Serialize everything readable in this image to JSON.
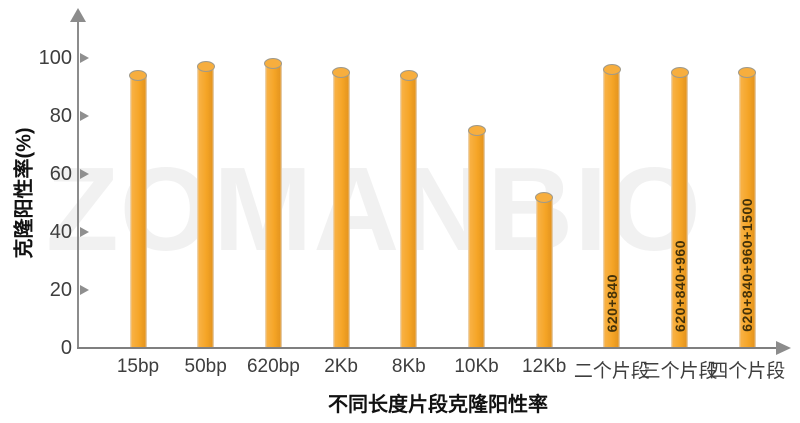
{
  "watermark": {
    "text": "ZOMANBIO"
  },
  "chart_data": {
    "type": "bar",
    "title": "",
    "xlabel": "不同长度片段克隆阳性率",
    "ylabel": "克隆阳性率(%)",
    "categories": [
      "15bp",
      "50bp",
      "620bp",
      "2Kb",
      "8Kb",
      "10Kb",
      "12Kb",
      "二个片段",
      "三个片段",
      "四个片段"
    ],
    "values": [
      94,
      97,
      98,
      95,
      94,
      75,
      52,
      96,
      95,
      95
    ],
    "bar_annotations": [
      "",
      "",
      "",
      "",
      "",
      "",
      "",
      "620+840",
      "620+840+960",
      "620+840+960+1500"
    ],
    "y_ticks": [
      0,
      20,
      40,
      60,
      80,
      100
    ],
    "ylim": [
      0,
      110
    ],
    "grid": false,
    "legend": null,
    "bar_color": "#F5A526",
    "bar_cap_color": "#F7AE3E",
    "bar_cap_stroke": "#A09A8A",
    "annotation_color": "#44320A",
    "axis_color": "#8C8C8C",
    "tick_label_color": "#3E3E3E",
    "title_color": "#111111",
    "watermark_color": "#F1F1F1"
  }
}
